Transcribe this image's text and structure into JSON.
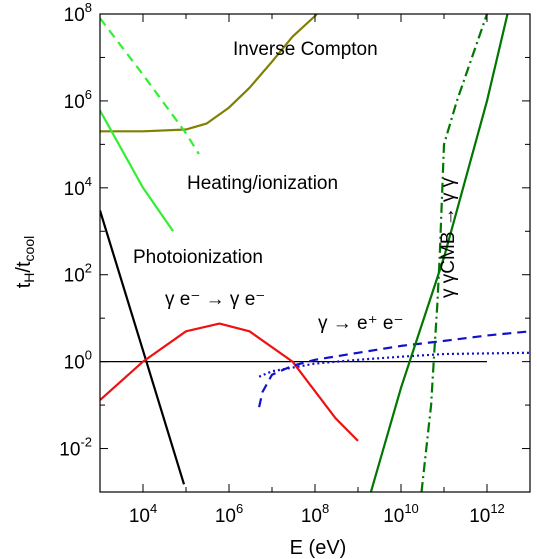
{
  "chart_data": {
    "type": "line",
    "xlabel": "E (eV)",
    "ylabel": "tH/tcool",
    "x_scale": "log",
    "y_scale": "log",
    "xlim": [
      1000,
      10000000000000
    ],
    "ylim": [
      0.001,
      100000000
    ],
    "x_ticks": [
      {
        "base": "10",
        "exp": "4"
      },
      {
        "base": "10",
        "exp": "6"
      },
      {
        "base": "10",
        "exp": "8"
      },
      {
        "base": "10",
        "exp": "10"
      },
      {
        "base": "10",
        "exp": "12"
      }
    ],
    "y_ticks": [
      {
        "base": "10",
        "exp": "-2"
      },
      {
        "base": "10",
        "exp": "0"
      },
      {
        "base": "10",
        "exp": "2"
      },
      {
        "base": "10",
        "exp": "4"
      },
      {
        "base": "10",
        "exp": "6"
      },
      {
        "base": "10",
        "exp": "8"
      }
    ],
    "annotations": {
      "inverse_compton": "Inverse Compton",
      "heating": "Heating/ionization",
      "photoionization": "Photoionization",
      "compton_scatter": "γ e⁻ → γ e⁻",
      "pair_production": "γ → e⁺ e⁻",
      "gamma_gamma": "γ γCMB → γ γ"
    },
    "colors": {
      "inverse_compton": "#808000",
      "heating": "#33ee33",
      "photoionization": "#000000",
      "compton_scatter": "#ee1111",
      "pair_production": "#1111cc",
      "gamma_gamma": "#007700",
      "reference": "#000000"
    },
    "series": [
      {
        "key": "reference",
        "style": "solid",
        "x": [
          1000,
          1000000000000
        ],
        "y": [
          1,
          1
        ]
      },
      {
        "key": "inverse_compton",
        "style": "solid",
        "x": [
          1000,
          10000,
          100000,
          300000,
          1000000,
          3000000,
          10000000,
          30000000,
          100000000,
          200000000
        ],
        "y": [
          200000,
          200000,
          220000,
          300000,
          700000,
          2000000,
          8000000,
          30000000,
          90000000,
          200000000
        ]
      },
      {
        "key": "heating",
        "style": "dashed",
        "x": [
          1000,
          10000,
          100000,
          200000
        ],
        "y": [
          80000000,
          4000000,
          180000,
          60000
        ]
      },
      {
        "key": "heating",
        "style": "solid",
        "x": [
          1000,
          10000,
          50000
        ],
        "y": [
          600000,
          10000,
          1000
        ]
      },
      {
        "key": "photoionization",
        "style": "solid",
        "x": [
          1000,
          12000,
          90000
        ],
        "y": [
          3000,
          1,
          0.0015
        ]
      },
      {
        "key": "compton_scatter",
        "style": "solid",
        "x": [
          1000,
          10000,
          100000,
          600000,
          3000000,
          30000000,
          300000000,
          1000000000
        ],
        "y": [
          0.13,
          1,
          5,
          7.5,
          5,
          1,
          0.05,
          0.015
        ]
      },
      {
        "key": "pair_production",
        "style": "dashed",
        "x": [
          5000000,
          6000000,
          10000000,
          30000000,
          100000000,
          1000000000,
          10000000000,
          100000000000,
          1000000000000,
          10000000000000
        ],
        "y": [
          0.09,
          0.2,
          0.5,
          0.8,
          1.1,
          1.6,
          2.3,
          3,
          4,
          5
        ]
      },
      {
        "key": "pair_production",
        "style": "dotted",
        "x": [
          5000000,
          10000000,
          100000000,
          1000000000,
          10000000000,
          100000000000,
          1000000000000,
          10000000000000
        ],
        "y": [
          0.45,
          0.6,
          0.9,
          1.1,
          1.3,
          1.5,
          1.55,
          1.6
        ]
      },
      {
        "key": "gamma_gamma",
        "style": "dashdot",
        "x": [
          30000000000,
          50000000000,
          60000000000,
          70000000000,
          80000000000,
          100000000000,
          200000000000,
          1000000000000
        ],
        "y": [
          0.001,
          0.1,
          2,
          20,
          300,
          100000,
          1000000,
          100000000
        ]
      },
      {
        "key": "gamma_gamma",
        "style": "solid",
        "x": [
          2000000000,
          10000000000,
          100000000000,
          1000000000000,
          3000000000000
        ],
        "y": [
          0.001,
          0.25,
          250,
          1000000,
          100000000
        ]
      }
    ]
  }
}
